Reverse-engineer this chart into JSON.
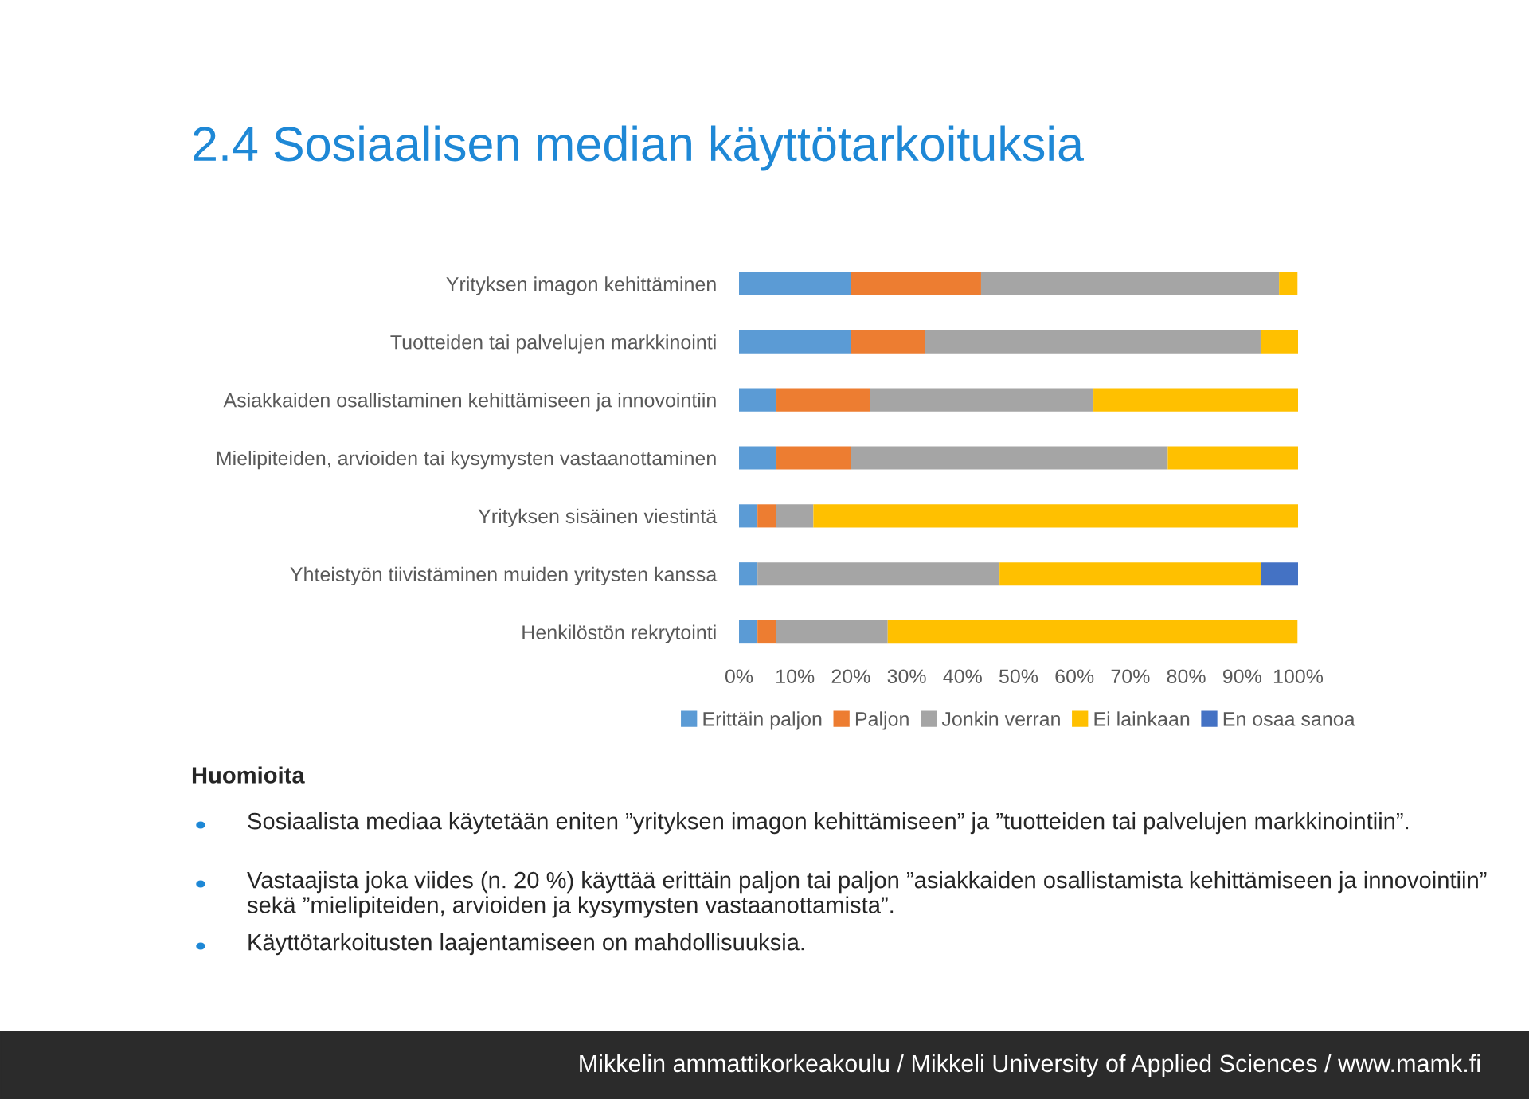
{
  "chart_data": {
    "type": "bar",
    "orientation": "horizontal",
    "stacked": true,
    "title": "2.4 Sosiaalisen median käyttötarkoituksia",
    "categories": [
      "Yrityksen imagon kehittäminen",
      "Tuotteiden tai palvelujen markkinointi",
      "Asiakkaiden osallistaminen kehittämiseen ja innovointiin",
      "Mielipiteiden, arvioiden tai kysymysten vastaanottaminen",
      "Yrityksen sisäinen viestintä",
      "Yhteistyön tiivistäminen muiden yritysten kanssa",
      "Henkilöstön rekrytointi"
    ],
    "series": [
      {
        "name": "Erittäin paljon",
        "color": "#5b9bd5",
        "values": [
          20,
          20,
          6.7,
          6.7,
          3.3,
          3.3,
          3.3
        ]
      },
      {
        "name": "Paljon",
        "color": "#ed7d31",
        "values": [
          23.3,
          13.3,
          16.7,
          13.3,
          3.3,
          null,
          3.3
        ]
      },
      {
        "name": "Jonkin verran",
        "color": "#a5a5a5",
        "values": [
          53.3,
          60,
          40,
          56.7,
          6.7,
          43.3,
          20
        ]
      },
      {
        "name": "Ei lainkaan",
        "color": "#ffc000",
        "values": [
          3.3,
          6.7,
          36.7,
          23.3,
          86.7,
          46.7,
          73.3
        ]
      },
      {
        "name": "En osaa sanoa",
        "color": "#4472c4",
        "values": [
          null,
          null,
          null,
          null,
          null,
          6.7,
          null
        ]
      }
    ],
    "xlim": [
      0,
      100
    ],
    "xticks": [
      {
        "value": 0,
        "label": "0%"
      },
      {
        "value": 10,
        "label": "10%"
      },
      {
        "value": 20,
        "label": "20%"
      },
      {
        "value": 30,
        "label": "30%"
      },
      {
        "value": 40,
        "label": "40%"
      },
      {
        "value": 50,
        "label": "50%"
      },
      {
        "value": 60,
        "label": "60%"
      },
      {
        "value": 70,
        "label": "70%"
      },
      {
        "value": 80,
        "label": "80%"
      },
      {
        "value": 90,
        "label": "90%"
      },
      {
        "value": 100,
        "label": "100%"
      }
    ],
    "grid": false,
    "legend": "bottom",
    "annotations": [
      "Huomioita",
      "Sosiaalista mediaa käytetään eniten ”yrityksen imagon kehittämiseen” ja ”tuotteiden tai palvelujen markkinointiin”.",
      "Vastaajista joka viides (n. 20 %) käyttää erittäin paljon tai paljon ”asiakkaiden osallistamista kehittämiseen ja innovointiin” sekä ”mielipiteiden, arvioiden ja kysymysten vastaanottamista”.",
      "Käyttötarkoitusten laajentamiseen on mahdollisuuksia.",
      "Mikkelin ammattikorkeakoulu / Mikkeli University of Applied Sciences / www.mamk.fi"
    ]
  }
}
